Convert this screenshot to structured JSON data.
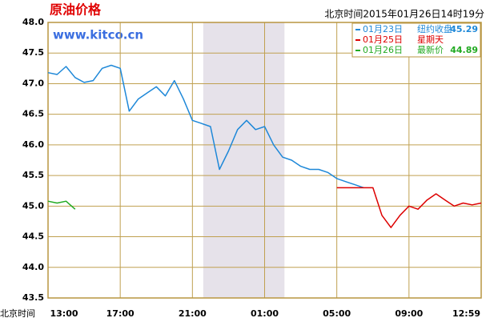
{
  "chart_data": {
    "type": "line",
    "title": "原油价格",
    "subtitle": "www.kitco.cn",
    "timestamp": "北京时间2015年01月26日14时19分",
    "x_label": "北京时间",
    "x": [
      0,
      0.5,
      1,
      1.5,
      2,
      2.5,
      3,
      3.5,
      4,
      4.5,
      5,
      5.5,
      6,
      6.5,
      7,
      7.5,
      8,
      8.5,
      9,
      9.5,
      10,
      10.5,
      11,
      11.5,
      12,
      12.5,
      13,
      13.5,
      14,
      14.5,
      15,
      15.5,
      16,
      16.5,
      17,
      17.5,
      18,
      18.5,
      19,
      19.5,
      20,
      20.5,
      21,
      21.5,
      22,
      22.5,
      23,
      23.5,
      24
    ],
    "series": [
      {
        "name": "01月23日",
        "note": "纽约收盘",
        "quote": 45.29,
        "color": "#1e88d8",
        "values": [
          47.18,
          47.15,
          47.28,
          47.1,
          47.02,
          47.05,
          47.25,
          47.3,
          47.25,
          46.55,
          46.75,
          46.85,
          46.95,
          46.8,
          47.05,
          46.75,
          46.4,
          46.35,
          46.3,
          45.6,
          45.9,
          46.25,
          46.4,
          46.25,
          46.3,
          46.0,
          45.8,
          45.75,
          45.65,
          45.6,
          45.6,
          45.55,
          45.45,
          45.4,
          45.35,
          45.3,
          null,
          null,
          null,
          null,
          null,
          null,
          null,
          null,
          null,
          null,
          null,
          null,
          null
        ]
      },
      {
        "name": "01月25日",
        "note": "星期天",
        "color": "#dd0000",
        "values": [
          null,
          null,
          null,
          null,
          null,
          null,
          null,
          null,
          null,
          null,
          null,
          null,
          null,
          null,
          null,
          null,
          null,
          null,
          null,
          null,
          null,
          null,
          null,
          null,
          null,
          null,
          null,
          null,
          null,
          null,
          null,
          null,
          45.3,
          45.3,
          45.3,
          45.3,
          45.3,
          44.85,
          44.65,
          44.85,
          45.0,
          44.95,
          45.1,
          45.2,
          45.1,
          45.0,
          45.05,
          45.02,
          45.05
        ]
      },
      {
        "name": "01月26日",
        "note": "最新价",
        "quote": 44.89,
        "color": "#22aa22",
        "values": [
          45.08,
          45.05,
          45.08,
          44.95,
          null,
          null,
          null,
          null,
          null,
          null,
          null,
          null,
          null,
          null,
          null,
          null,
          null,
          null,
          null,
          null,
          null,
          null,
          null,
          null,
          null,
          null,
          null,
          null,
          null,
          null,
          null,
          null,
          null,
          null,
          null,
          null,
          null,
          null,
          null,
          null,
          null,
          null,
          null,
          null,
          null,
          null,
          null,
          null,
          null
        ]
      }
    ],
    "shade": [
      8.6,
      13.1
    ],
    "xlim": [
      0,
      24
    ],
    "xticks": [
      {
        "value": 0,
        "label": "13:00"
      },
      {
        "value": 4,
        "label": "17:00"
      },
      {
        "value": 8,
        "label": "21:00"
      },
      {
        "value": 12,
        "label": "01:00"
      },
      {
        "value": 16,
        "label": "05:00"
      },
      {
        "value": 20,
        "label": "09:00"
      },
      {
        "value": 24,
        "label": "12:59"
      }
    ],
    "ylim": [
      43.5,
      48
    ],
    "yticks": [
      43.5,
      {
        "value": 44,
        "label": "44.0"
      },
      44.5,
      {
        "value": 45,
        "label": "45.0"
      },
      45.5,
      {
        "value": 46,
        "label": "46.0"
      },
      46.5,
      {
        "value": 47,
        "label": "47.0"
      },
      47.5,
      {
        "value": 48,
        "label": "48.0"
      }
    ],
    "grid": true
  }
}
